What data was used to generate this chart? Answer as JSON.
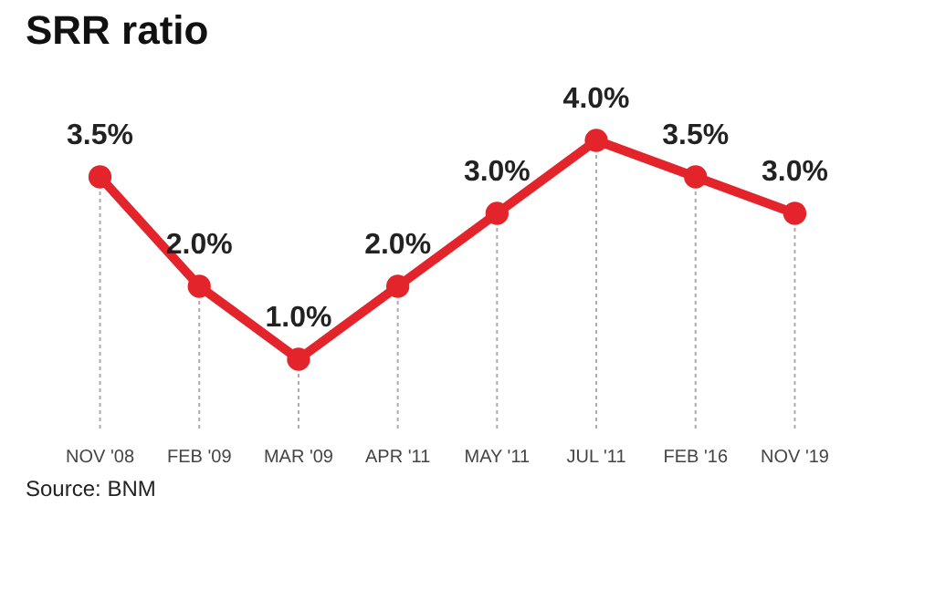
{
  "chart_data": {
    "type": "line",
    "title": "SRR ratio",
    "categories": [
      "NOV '08",
      "FEB '09",
      "MAR '09",
      "APR '11",
      "MAY '11",
      "JUL '11",
      "FEB '16",
      "NOV '19"
    ],
    "series": [
      {
        "color": "#e3242b",
        "values": [
          3.5,
          2.0,
          1.0,
          2.0,
          3.0,
          4.0,
          3.5,
          3.0
        ],
        "value_labels": [
          "3.5%",
          "2.0%",
          "1.0%",
          "2.0%",
          "3.0%",
          "4.0%",
          "3.5%",
          "3.0%"
        ]
      }
    ],
    "grid": "x",
    "marker": "circle",
    "line_style": "solid",
    "annotations": [
      "Source: BNM"
    ]
  }
}
